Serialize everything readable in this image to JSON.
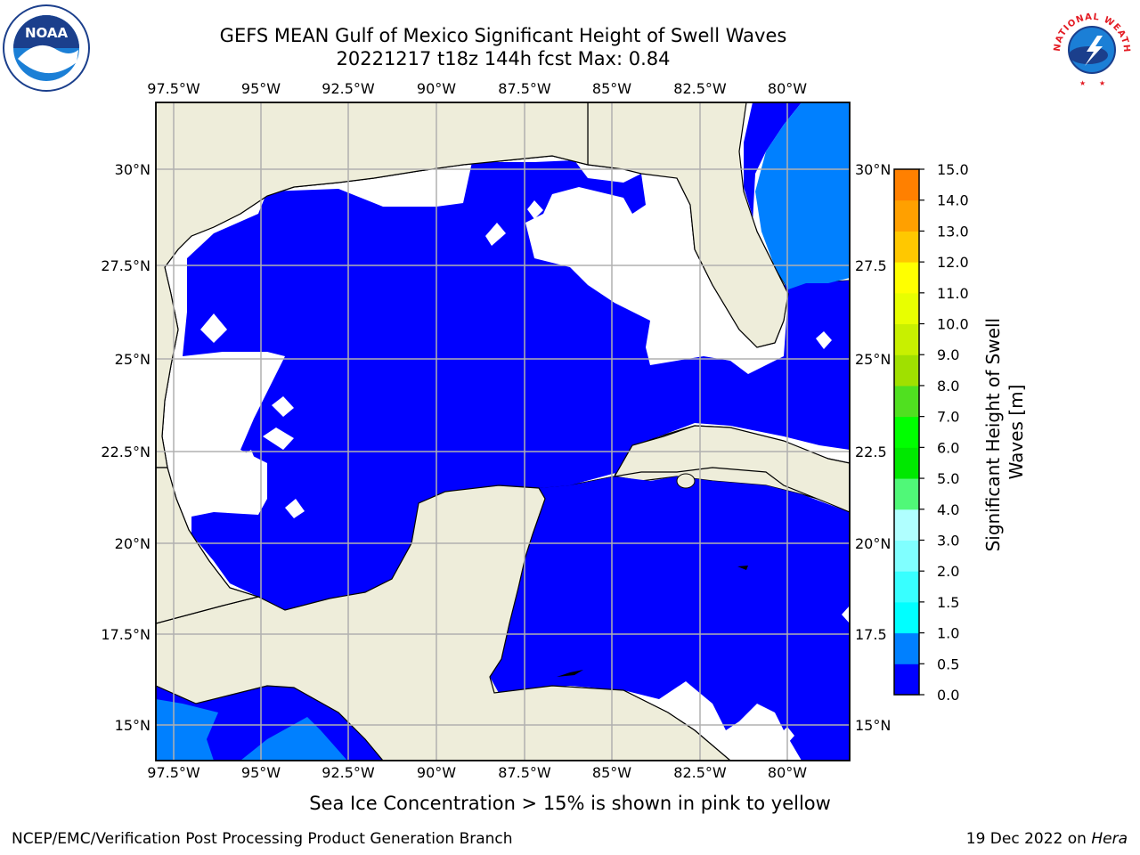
{
  "header": {
    "title_line1": "GEFS MEAN Gulf of Mexico Significant Height of Swell Waves",
    "title_line2": "20221217 t18z 144h fcst   Max: 0.84"
  },
  "logos": {
    "left": "NOAA",
    "right": "NATIONAL WEATHER SERVICE",
    "left_icon": "noaa-logo-icon",
    "right_icon": "nws-logo-icon"
  },
  "map": {
    "lon_labels": [
      "97.5°W",
      "95°W",
      "92.5°W",
      "90°W",
      "87.5°W",
      "85°W",
      "82.5°W",
      "80°W"
    ],
    "lat_labels": [
      "30°N",
      "27.5°N",
      "25°N",
      "22.5°N",
      "20°N",
      "17.5°N",
      "15°N"
    ],
    "lat_labels_right": [
      "30°N",
      "27.5",
      "25°N",
      "22.5",
      "20°N",
      "17.5",
      "15°N"
    ],
    "colors": {
      "land": "#eeedda",
      "ocean_white": "#ffffff",
      "swell_0_05": "#0000ff",
      "swell_05_10": "#0080ff",
      "grid": "#b0b0b0"
    }
  },
  "colorbar": {
    "label": "Significant Height of Swell Waves [m]",
    "ticks": [
      "15.0",
      "14.0",
      "13.0",
      "12.0",
      "11.0",
      "10.0",
      "9.0",
      "8.0",
      "7.0",
      "6.0",
      "5.0",
      "4.0",
      "3.0",
      "2.0",
      "1.5",
      "1.0",
      "0.5",
      "0.0"
    ],
    "colors_bottom_to_top": [
      "#0000ff",
      "#0080ff",
      "#00ffff",
      "#38ffff",
      "#80ffff",
      "#b0ffff",
      "#50f878",
      "#00e800",
      "#00ff00",
      "#50e020",
      "#a0e000",
      "#c8f000",
      "#e8ff00",
      "#ffff00",
      "#ffc800",
      "#ffa000",
      "#ff8000",
      "#ff5000",
      "#ff2800",
      "#ff0000"
    ]
  },
  "note": "Sea Ice Concentration > 15% is shown in pink to yellow",
  "footer": {
    "left": "NCEP/EMC/Verification Post Processing Product Generation Branch",
    "right_prefix": "19 Dec 2022 on ",
    "right_host": "Hera"
  }
}
